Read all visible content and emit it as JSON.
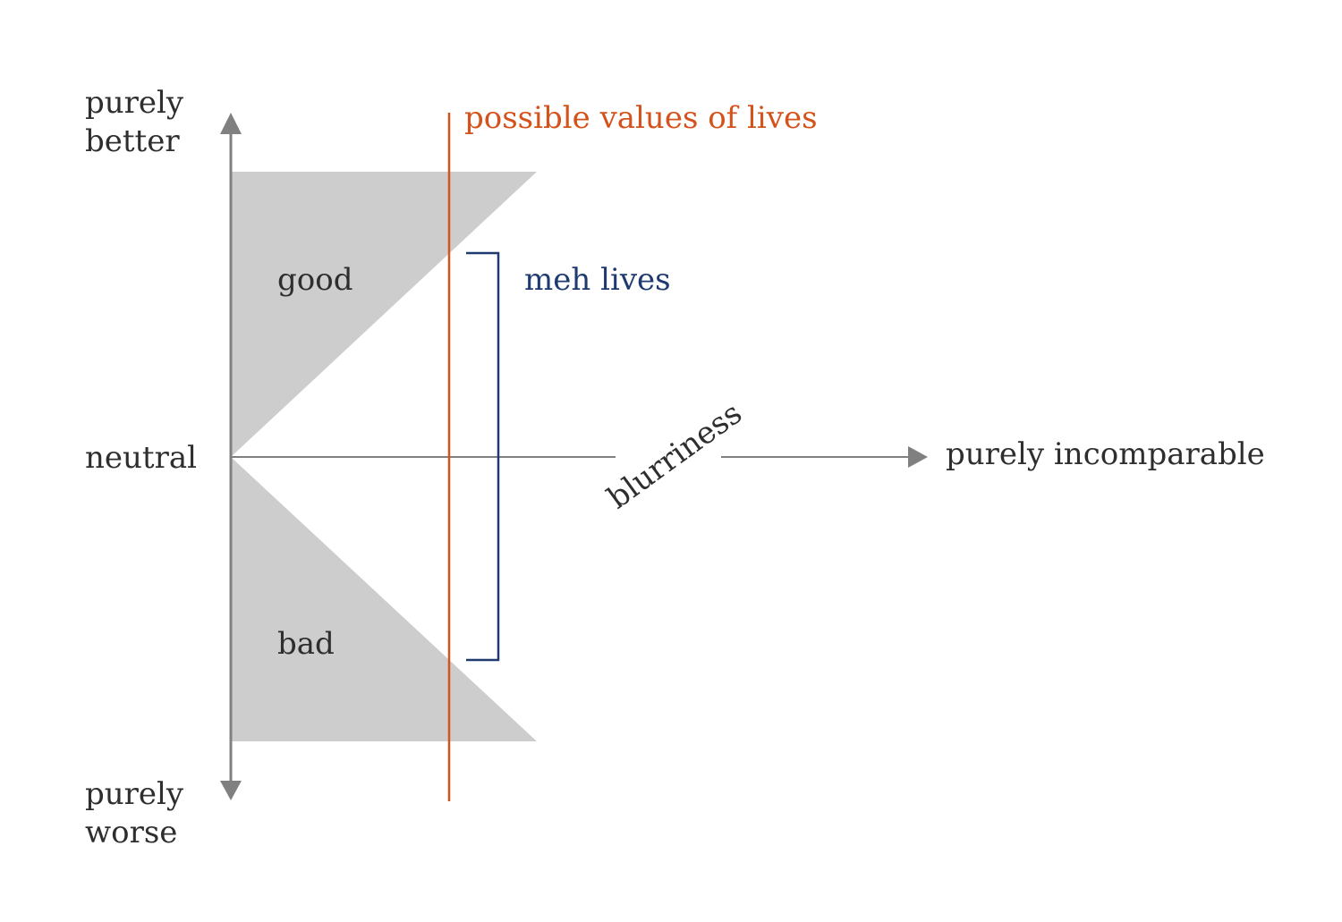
{
  "labels": {
    "top_line1": "purely",
    "top_line2": "better",
    "bottom_line1": "purely",
    "bottom_line2": "worse",
    "neutral": "neutral",
    "good": "good",
    "bad": "bad",
    "possible_values": "possible values of lives",
    "meh_lives": "meh lives",
    "blurriness": "blurriness",
    "incomparable": "purely incomparable"
  },
  "colors": {
    "axis": "#808080",
    "region_fill": "#cdcdcd",
    "text": "#2e2e2e",
    "possible_values_line": "#d4521c",
    "meh_bracket": "#1f3a6e"
  }
}
